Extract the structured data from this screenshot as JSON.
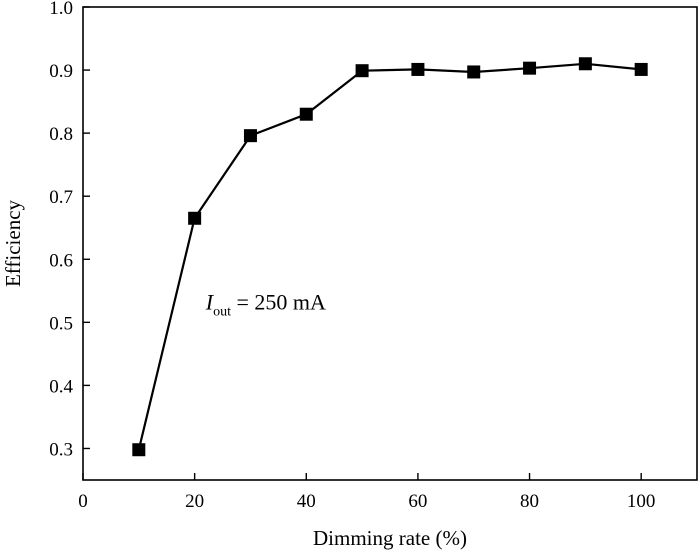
{
  "chart_data": {
    "type": "line",
    "title": "",
    "xlabel": "Dimming rate (%)",
    "ylabel": "Efficiency",
    "xlim": [
      0,
      110
    ],
    "ylim": [
      0.25,
      1.0
    ],
    "x_ticks": [
      0,
      20,
      40,
      60,
      80,
      100
    ],
    "x_tick_labels": [
      "0",
      "20",
      "40",
      "60",
      "80",
      "100"
    ],
    "y_ticks": [
      0.3,
      0.4,
      0.5,
      0.6,
      0.7,
      0.8,
      0.9,
      1.0
    ],
    "y_tick_labels": [
      "0.3",
      "0.4",
      "0.5",
      "0.6",
      "0.7",
      "0.8",
      "0.9",
      "1.0"
    ],
    "grid": false,
    "marker": "square",
    "series": [
      {
        "color": "#000000",
        "x": [
          10,
          20,
          30,
          40,
          50,
          60,
          70,
          80,
          90,
          100
        ],
        "values": [
          0.298,
          0.665,
          0.796,
          0.83,
          0.899,
          0.901,
          0.897,
          0.903,
          0.91,
          0.901
        ]
      }
    ],
    "annotation": {
      "symbol": "I",
      "subscript": "out",
      "text": " = 250 mA",
      "x": 22,
      "y": 0.52
    }
  }
}
